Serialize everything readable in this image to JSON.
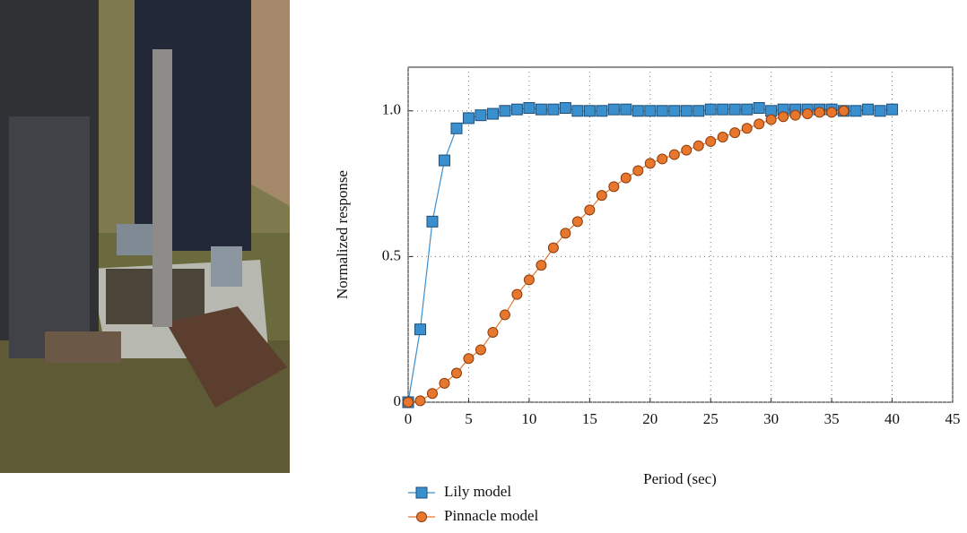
{
  "chart_data": {
    "type": "line",
    "xlabel": "Period (sec)",
    "ylabel": "Normalized response",
    "xlim": [
      0,
      45
    ],
    "ylim": [
      0,
      1.15
    ],
    "xticks": [
      0,
      5,
      10,
      15,
      20,
      25,
      30,
      35,
      40,
      45
    ],
    "yticks": [
      0,
      0.5,
      {
        "value": 1,
        "label": "1.0"
      }
    ],
    "grid": true,
    "legend": "bottom-left",
    "series": [
      {
        "name": "Lily model",
        "color": "#3a8fcf",
        "marker": "square",
        "x": [
          0,
          1,
          2,
          3,
          4,
          5,
          6,
          7,
          8,
          9,
          10,
          11,
          12,
          13,
          14,
          15,
          16,
          17,
          18,
          19,
          20,
          21,
          22,
          23,
          24,
          25,
          26,
          27,
          28,
          29,
          30,
          31,
          32,
          33,
          34,
          35,
          36,
          37,
          38,
          39,
          40
        ],
        "values": [
          0,
          0.25,
          0.62,
          0.83,
          0.94,
          0.975,
          0.985,
          0.99,
          1.0,
          1.005,
          1.01,
          1.005,
          1.005,
          1.01,
          1.0,
          1.0,
          1.0,
          1.005,
          1.005,
          1.0,
          1.0,
          1.0,
          1.0,
          1.0,
          1.0,
          1.005,
          1.005,
          1.005,
          1.005,
          1.01,
          1.0,
          1.005,
          1.005,
          1.005,
          1.005,
          1.005,
          1.0,
          1.0,
          1.005,
          1.0,
          1.005
        ]
      },
      {
        "name": "Pinnacle model",
        "color": "#e8772e",
        "marker": "circle",
        "x": [
          0,
          1,
          2,
          3,
          4,
          5,
          6,
          7,
          8,
          9,
          10,
          11,
          12,
          13,
          14,
          15,
          16,
          17,
          18,
          19,
          20,
          21,
          22,
          23,
          24,
          25,
          26,
          27,
          28,
          29,
          30,
          31,
          32,
          33,
          34,
          35,
          36
        ],
        "values": [
          0,
          0.005,
          0.03,
          0.065,
          0.1,
          0.15,
          0.18,
          0.24,
          0.3,
          0.37,
          0.42,
          0.47,
          0.53,
          0.58,
          0.62,
          0.66,
          0.71,
          0.74,
          0.77,
          0.795,
          0.82,
          0.835,
          0.85,
          0.865,
          0.88,
          0.895,
          0.91,
          0.925,
          0.94,
          0.955,
          0.97,
          0.98,
          0.985,
          0.99,
          0.995,
          0.995,
          1.0
        ]
      }
    ]
  }
}
